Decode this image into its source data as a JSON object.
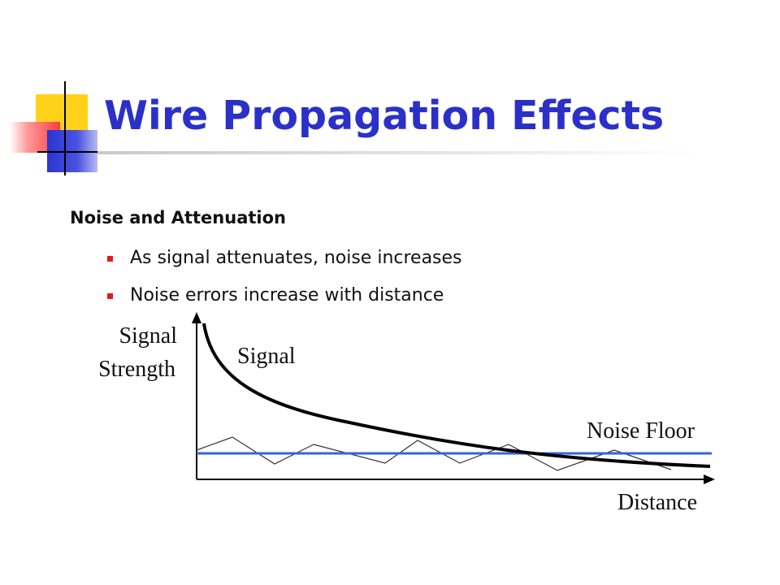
{
  "title": "Wire Propagation Effects",
  "subheading": "Noise and Attenuation",
  "bullets": [
    "As signal attenuates, noise increases",
    "Noise errors increase with distance"
  ],
  "diagram": {
    "y_label_line1": "Signal",
    "y_label_line2": "Strength",
    "signal_label": "Signal",
    "noise_floor_label": "Noise Floor",
    "x_label": "Distance"
  },
  "colors": {
    "title": "#2b30c9",
    "bullet_marker": "#e21b1b",
    "noise_floor_line": "#3b63d8",
    "signal_curve": "#000000"
  }
}
